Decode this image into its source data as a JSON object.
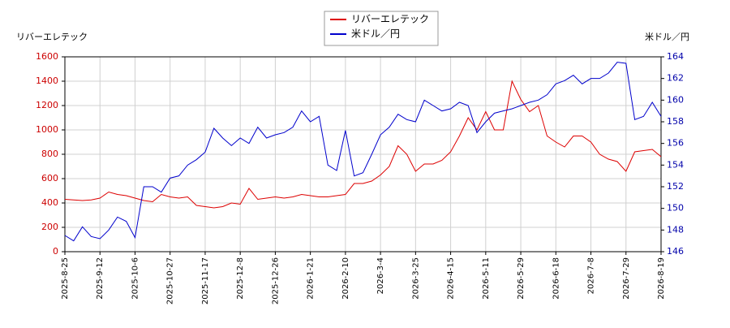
{
  "chart_data": {
    "type": "line",
    "ylabel": "リバーエレテック",
    "y2label": "米ドル／円",
    "categories": [
      "2025-8-25",
      null,
      null,
      null,
      "2025-9-12",
      null,
      null,
      null,
      "2025-10-6",
      null,
      null,
      null,
      "2025-10-27",
      null,
      null,
      null,
      "2025-11-17",
      null,
      null,
      null,
      "2025-12-8",
      null,
      null,
      null,
      "2025-12-26",
      null,
      null,
      null,
      "2026-1-21",
      null,
      null,
      null,
      "2026-2-10",
      null,
      null,
      null,
      "2026-3-4",
      null,
      null,
      null,
      "2026-3-25",
      null,
      null,
      null,
      "2026-4-15",
      null,
      null,
      null,
      "2026-5-11",
      null,
      null,
      null,
      "2026-5-29",
      null,
      null,
      null,
      "2026-6-18",
      null,
      null,
      null,
      "2026-7-8",
      null,
      null,
      null,
      "2026-7-29",
      null,
      null,
      null,
      "2026-8-19"
    ],
    "series": [
      {
        "name": "リバーエレテック",
        "color": "#dd0000",
        "values": [
          430,
          425,
          420,
          425,
          440,
          490,
          470,
          460,
          440,
          420,
          410,
          470,
          450,
          440,
          450,
          380,
          370,
          360,
          370,
          400,
          390,
          520,
          430,
          440,
          450,
          440,
          450,
          470,
          460,
          450,
          450,
          460,
          470,
          560,
          560,
          580,
          630,
          700,
          870,
          800,
          660,
          720,
          720,
          750,
          820,
          950,
          1100,
          1000,
          1150,
          1000,
          1000,
          1400,
          1250,
          1150,
          1200,
          950,
          900,
          860,
          950,
          950,
          900,
          800,
          760,
          740,
          660,
          820,
          830,
          840,
          780
        ]
      },
      {
        "name": "米ドル／円",
        "color": "#0000cc",
        "axis": "y2",
        "values": [
          147.5,
          147,
          148.3,
          147.4,
          147.2,
          148,
          149.2,
          148.8,
          147.3,
          152,
          152,
          151.5,
          152.8,
          153,
          154,
          154.5,
          155.2,
          157.4,
          156.5,
          155.8,
          156.5,
          156,
          157.5,
          156.5,
          156.8,
          157,
          157.5,
          159,
          158,
          158.5,
          154,
          153.5,
          157.2,
          153,
          153.3,
          155,
          156.8,
          157.5,
          158.7,
          158.2,
          158,
          160,
          159.5,
          159,
          159.2,
          159.8,
          159.5,
          157,
          158,
          158.8,
          159,
          159.2,
          159.5,
          159.8,
          160,
          160.5,
          161.5,
          161.8,
          162.3,
          161.5,
          162,
          162,
          162.5,
          163.5,
          163.4,
          158.2,
          158.5,
          159.8,
          158.5
        ]
      }
    ],
    "ylim": [
      0,
      1600
    ],
    "yticks": [
      0,
      200,
      400,
      600,
      800,
      1000,
      1200,
      1400,
      1600
    ],
    "y2lim": [
      146,
      164
    ],
    "y2ticks": [
      146,
      148,
      150,
      152,
      154,
      156,
      158,
      160,
      162,
      164
    ],
    "grid": true
  }
}
